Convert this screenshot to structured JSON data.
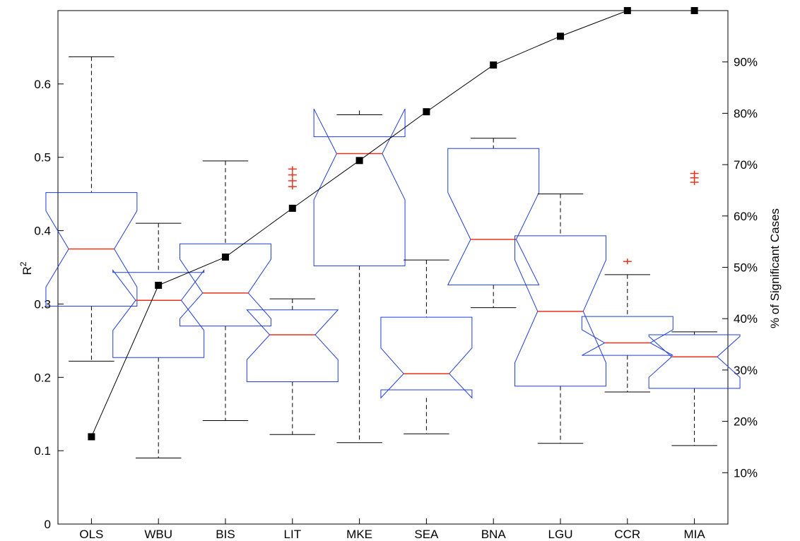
{
  "chart_data": {
    "type": "box",
    "categories": [
      "OLS",
      "WBU",
      "BIS",
      "LIT",
      "MKE",
      "SEA",
      "BNA",
      "LGU",
      "CCR",
      "MIA"
    ],
    "left_axis": {
      "label_base": "R",
      "label_sup": "2",
      "ylim": [
        0,
        0.7
      ],
      "ticks": [
        {
          "value": 0,
          "label": "0"
        },
        {
          "value": 0.1,
          "label": "0.1"
        },
        {
          "value": 0.2,
          "label": "0.2"
        },
        {
          "value": 0.3,
          "label": "0.3"
        },
        {
          "value": 0.4,
          "label": "0.4"
        },
        {
          "value": 0.5,
          "label": "0.5"
        },
        {
          "value": 0.6,
          "label": "0.6"
        }
      ]
    },
    "right_axis": {
      "label": "% of Significant Cases",
      "ylim": [
        0,
        100
      ],
      "ticks": [
        {
          "value": 10,
          "label": "10%"
        },
        {
          "value": 20,
          "label": "20%"
        },
        {
          "value": 30,
          "label": "30%"
        },
        {
          "value": 40,
          "label": "40%"
        },
        {
          "value": 50,
          "label": "50%"
        },
        {
          "value": 60,
          "label": "60%"
        },
        {
          "value": 70,
          "label": "70%"
        },
        {
          "value": 80,
          "label": "80%"
        },
        {
          "value": 90,
          "label": "90%"
        }
      ]
    },
    "boxes": [
      {
        "category": "OLS",
        "whisker_low": 0.222,
        "q1": 0.297,
        "median": 0.375,
        "q3": 0.452,
        "whisker_high": 0.637,
        "notch_low": 0.323,
        "notch_high": 0.427,
        "outliers": []
      },
      {
        "category": "WBU",
        "whisker_low": 0.09,
        "q1": 0.227,
        "median": 0.305,
        "q3": 0.343,
        "whisker_high": 0.41,
        "notch_low": 0.264,
        "notch_high": 0.346,
        "outliers": []
      },
      {
        "category": "BIS",
        "whisker_low": 0.141,
        "q1": 0.27,
        "median": 0.315,
        "q3": 0.382,
        "whisker_high": 0.495,
        "notch_low": 0.28,
        "notch_high": 0.361,
        "outliers": []
      },
      {
        "category": "LIT",
        "whisker_low": 0.122,
        "q1": 0.194,
        "median": 0.258,
        "q3": 0.292,
        "whisker_high": 0.307,
        "notch_low": 0.224,
        "notch_high": 0.292,
        "outliers": [
          0.46,
          0.468,
          0.476,
          0.484
        ]
      },
      {
        "category": "MKE",
        "whisker_low": 0.111,
        "q1": 0.352,
        "median": 0.505,
        "q3": 0.528,
        "whisker_high": 0.558,
        "notch_low": 0.442,
        "notch_high": 0.566,
        "outliers": []
      },
      {
        "category": "SEA",
        "whisker_low": 0.123,
        "q1": 0.183,
        "median": 0.205,
        "q3": 0.282,
        "whisker_high": 0.36,
        "notch_low": 0.172,
        "notch_high": 0.24,
        "outliers": []
      },
      {
        "category": "BNA",
        "whisker_low": 0.295,
        "q1": 0.326,
        "median": 0.388,
        "q3": 0.512,
        "whisker_high": 0.526,
        "notch_low": 0.326,
        "notch_high": 0.452,
        "outliers": []
      },
      {
        "category": "LGU",
        "whisker_low": 0.11,
        "q1": 0.188,
        "median": 0.29,
        "q3": 0.393,
        "whisker_high": 0.45,
        "notch_low": 0.22,
        "notch_high": 0.36,
        "outliers": []
      },
      {
        "category": "CCR",
        "whisker_low": 0.18,
        "q1": 0.23,
        "median": 0.247,
        "q3": 0.283,
        "whisker_high": 0.34,
        "notch_low": 0.23,
        "notch_high": 0.265,
        "outliers": [
          0.358
        ]
      },
      {
        "category": "MIA",
        "whisker_low": 0.107,
        "q1": 0.185,
        "median": 0.228,
        "q3": 0.258,
        "whisker_high": 0.262,
        "notch_low": 0.2,
        "notch_high": 0.256,
        "outliers": [
          0.466,
          0.472,
          0.478
        ]
      }
    ],
    "line_series": {
      "axis": "right",
      "values": [
        17,
        46.5,
        52,
        61.5,
        70.8,
        80.3,
        89.4,
        95,
        100,
        100
      ]
    },
    "colors": {
      "box": "#1f3ddb",
      "median": "#e8331b",
      "outlier": "#e8331b",
      "whisker": "#000000",
      "line": "#000000",
      "marker": "#000000"
    },
    "grid": false,
    "legend": "none"
  }
}
